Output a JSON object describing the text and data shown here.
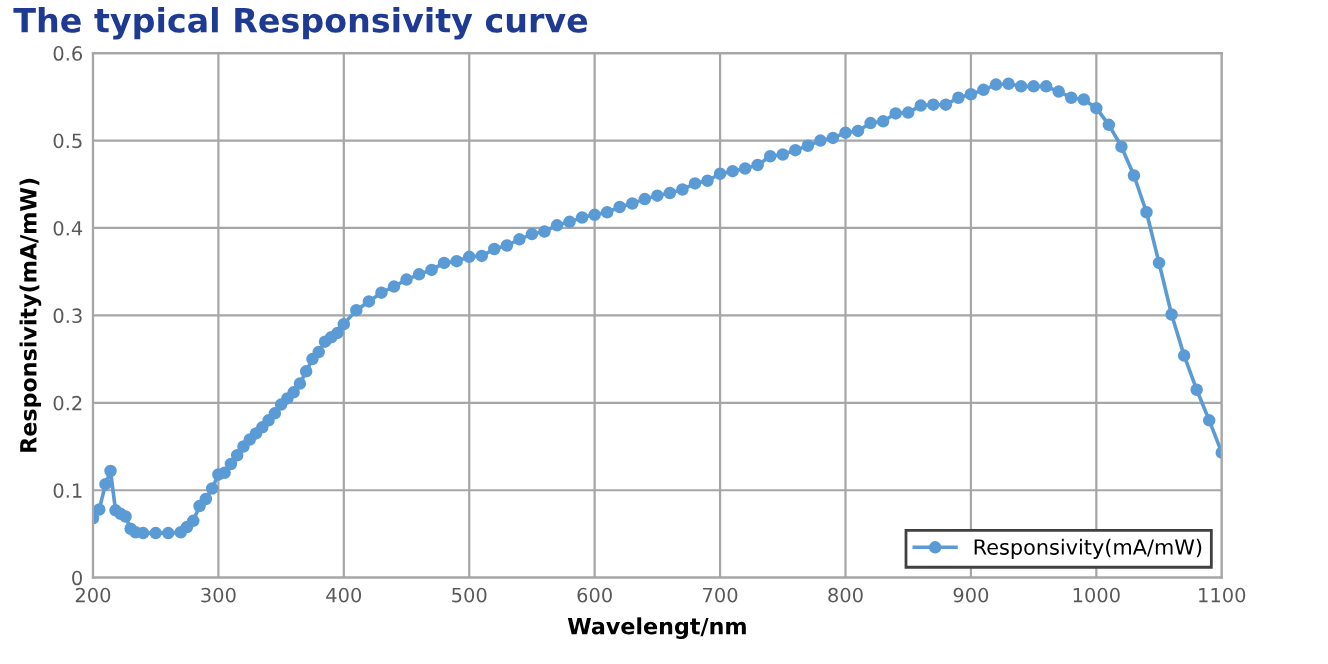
{
  "chart_data": {
    "type": "line",
    "title": "The typical Responsivity curve",
    "xlabel": "Wavelengt/nm",
    "ylabel": "Responsivity(mA/mW)",
    "x": [
      200,
      205,
      210,
      214,
      218,
      222,
      226,
      230,
      234,
      240,
      250,
      260,
      270,
      275,
      280,
      285,
      290,
      295,
      300,
      305,
      310,
      315,
      320,
      325,
      330,
      335,
      340,
      345,
      350,
      355,
      360,
      365,
      370,
      375,
      380,
      385,
      390,
      395,
      400,
      410,
      420,
      430,
      440,
      450,
      460,
      470,
      480,
      490,
      500,
      510,
      520,
      530,
      540,
      550,
      560,
      570,
      580,
      590,
      600,
      610,
      620,
      630,
      640,
      650,
      660,
      670,
      680,
      690,
      700,
      710,
      720,
      730,
      740,
      750,
      760,
      770,
      780,
      790,
      800,
      810,
      820,
      830,
      840,
      850,
      860,
      870,
      880,
      890,
      900,
      910,
      920,
      930,
      940,
      950,
      960,
      970,
      980,
      990,
      1000,
      1010,
      1020,
      1030,
      1040,
      1050,
      1060,
      1070,
      1080,
      1090,
      1100
    ],
    "series": [
      {
        "name": "Responsivity(mA/mW)",
        "color": "#5b9bd5",
        "values": [
          0.068,
          0.078,
          0.107,
          0.122,
          0.077,
          0.073,
          0.07,
          0.056,
          0.052,
          0.051,
          0.051,
          0.051,
          0.052,
          0.058,
          0.065,
          0.082,
          0.09,
          0.102,
          0.118,
          0.12,
          0.13,
          0.14,
          0.15,
          0.158,
          0.165,
          0.172,
          0.18,
          0.188,
          0.198,
          0.205,
          0.212,
          0.222,
          0.236,
          0.25,
          0.258,
          0.27,
          0.275,
          0.28,
          0.29,
          0.306,
          0.316,
          0.326,
          0.333,
          0.341,
          0.347,
          0.352,
          0.36,
          0.362,
          0.367,
          0.368,
          0.376,
          0.38,
          0.387,
          0.393,
          0.396,
          0.403,
          0.407,
          0.412,
          0.415,
          0.418,
          0.424,
          0.428,
          0.433,
          0.437,
          0.44,
          0.444,
          0.451,
          0.454,
          0.462,
          0.465,
          0.468,
          0.472,
          0.482,
          0.484,
          0.489,
          0.494,
          0.5,
          0.503,
          0.509,
          0.511,
          0.52,
          0.522,
          0.531,
          0.532,
          0.54,
          0.541,
          0.541,
          0.549,
          0.553,
          0.558,
          0.564,
          0.565,
          0.562,
          0.562,
          0.562,
          0.556,
          0.549,
          0.547,
          0.537,
          0.518,
          0.493,
          0.46,
          0.418,
          0.36,
          0.301,
          0.254,
          0.215,
          0.18,
          0.143
        ]
      }
    ],
    "xlim": [
      200,
      1100
    ],
    "xticks": [
      200,
      300,
      400,
      500,
      600,
      700,
      800,
      900,
      1000,
      1100
    ],
    "ylim": [
      0,
      0.6
    ],
    "yticks": [
      0,
      0.1,
      0.2,
      0.3,
      0.4,
      0.5,
      0.6
    ],
    "grid": true,
    "legend": "bottom right",
    "marker": "circle",
    "line_style": "solid"
  }
}
